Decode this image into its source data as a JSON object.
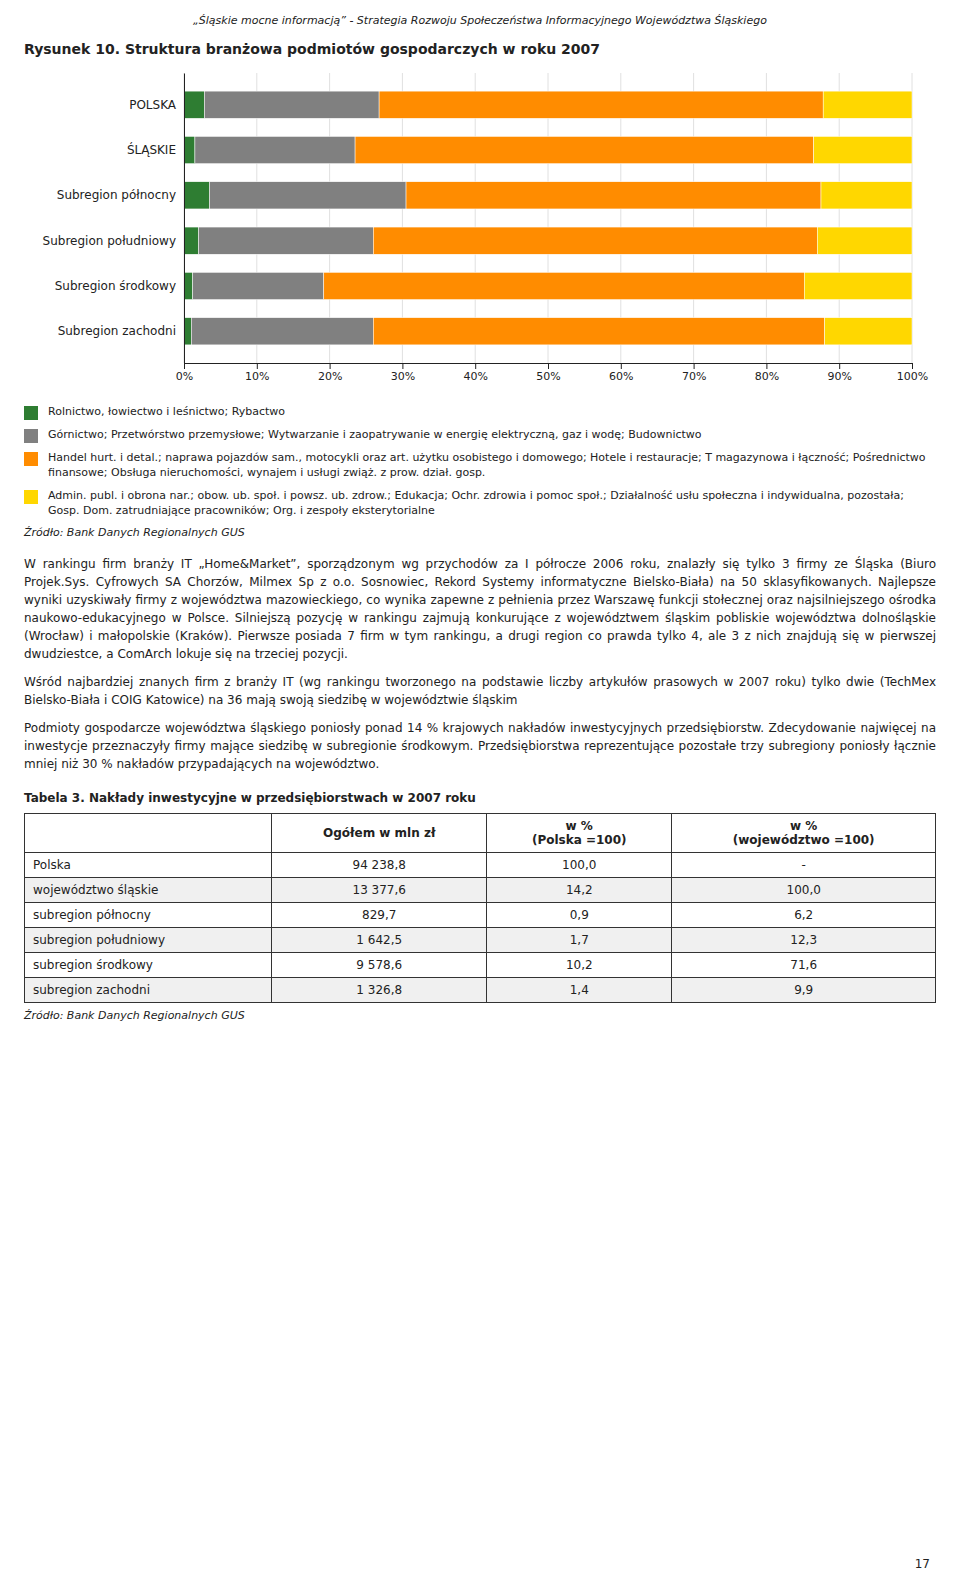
{
  "page_title": "„Śląskie mocne informacją” - Strategia Rozwoju Społeczeństwa Informacyjnego Województwa Śląskiego",
  "chart_data": {
    "type": "bar",
    "orientation": "horizontal",
    "stacked": true,
    "title": "Rysunek 10. Struktura branżowa podmiotów gospodarczych w roku 2007",
    "categories": [
      "POLSKA",
      "ŚLĄSKIE",
      "Subregion północny",
      "Subregion południowy",
      "Subregion środkowy",
      "Subregion zachodni"
    ],
    "series": [
      {
        "name": "Rolnictwo, łowiectwo i leśnictwo; Rybactwo",
        "color": "#2E7D32",
        "values": [
          2.8,
          1.5,
          3.5,
          2.0,
          1.2,
          1.0
        ]
      },
      {
        "name": "Górnictwo; Przetwórstwo przemysłowe; Wytwarzanie i zaopatrywanie w energię elektryczną, gaz i wodę; Budownictwo",
        "color": "#808080",
        "values": [
          24.0,
          22.0,
          27.0,
          24.0,
          18.0,
          25.0
        ]
      },
      {
        "name": "Handel hurt. i detal.; naprawa pojazdów sam., motocykli oraz art. użytku osobistego i domowego; Hotele i restauracje; T magazynowa i łączność; Pośrednictwo finansowe; Obsługa nieruchomości, wynajem i usługi zwiąż. z prow. dział. gosp.",
        "color": "#FF8C00",
        "values": [
          61.0,
          63.0,
          57.0,
          61.0,
          66.0,
          62.0
        ]
      },
      {
        "name": "Admin. publ. i obrona nar.; obow. ub. społ. i powsz. ub. zdrow.; Edukacja; Ochr. zdrowia i pomoc społ.; Działalność usłu społeczna i indywidualna, pozostała; Gosp. Dom. zatrudniające pracowników; Org. i zespoły eksterytorialne",
        "color": "#FFD700",
        "values": [
          12.2,
          13.5,
          12.5,
          13.0,
          14.8,
          12.0
        ]
      }
    ],
    "xlim": [
      0,
      100
    ],
    "xticks": [
      {
        "value": 0,
        "label": "0%"
      },
      {
        "value": 10,
        "label": "10%"
      },
      {
        "value": 20,
        "label": "20%"
      },
      {
        "value": 30,
        "label": "30%"
      },
      {
        "value": 40,
        "label": "40%"
      },
      {
        "value": 50,
        "label": "50%"
      },
      {
        "value": 60,
        "label": "60%"
      },
      {
        "value": 70,
        "label": "70%"
      },
      {
        "value": 80,
        "label": "80%"
      },
      {
        "value": 90,
        "label": "90%"
      },
      {
        "value": 100,
        "label": "100%"
      }
    ],
    "grid": true,
    "legend": "bottom",
    "annotations": [
      "Źródło: Bank Danych Regionalnych GUS"
    ]
  },
  "paragraphs": [
    "W rankingu firm branży IT „Home&Market”, sporządzonym wg przychodów za I półrocze 2006 roku, znalazły się tylko 3 firmy ze Śląska (Biuro Projek.Sys. Cyfrowych SA Chorzów, Milmex Sp z o.o. Sosnowiec, Rekord Systemy informatyczne Bielsko-Biała) na 50 sklasyfikowanych. Najlepsze wyniki uzyskiwały firmy z województwa mazowieckiego, co wynika zapewne z pełnienia przez Warszawę funkcji stołecznej oraz najsilniejszego ośrodka naukowo-edukacyjnego w Polsce. Silniejszą pozycję w rankingu zajmują konkurujące z województwem śląskim pobliskie województwa dolnośląskie (Wrocław) i małopolskie (Kraków). Pierwsze posiada 7 firm w tym rankingu, a drugi region co prawda tylko 4, ale 3 z nich znajdują się w pierwszej dwudziestce, a ComArch lokuje się na trzeciej pozycji.",
    "Wśród najbardziej znanych firm z branży IT (wg rankingu tworzonego na podstawie liczby artykułów prasowych w 2007 roku) tylko dwie (TechMex Bielsko-Biała i COIG Katowice) na 36 mają swoją siedzibę w województwie śląskim",
    "Podmioty gospodarcze województwa śląskiego poniosły ponad 14 % krajowych nakładów inwestycyjnych przedsiębiorstw. Zdecydowanie najwięcej na inwestycje przeznaczyły firmy mające siedzibę w subregionie środkowym. Przedsiębiorstwa reprezentujące pozostałe trzy subregiony poniosły łącznie mniej niż 30 % nakładów przypadających na województwo."
  ],
  "table": {
    "title": "Tabela 3. Nakłady inwestycyjne w przedsiębiorstwach w 2007 roku",
    "headers": [
      null,
      [
        "Ogółem w mln zł"
      ],
      [
        "w %",
        "(Polska =100)"
      ],
      [
        "w %",
        "(województwo =100)"
      ]
    ],
    "rows": [
      [
        "Polska",
        "94 238,8",
        "100,0",
        "-"
      ],
      [
        "województwo śląskie",
        "13 377,6",
        "14,2",
        "100,0"
      ],
      [
        "subregion północny",
        "829,7",
        "0,9",
        "6,2"
      ],
      [
        "subregion południowy",
        "1 642,5",
        "1,7",
        "12,3"
      ],
      [
        "subregion środkowy",
        "9 578,6",
        "10,2",
        "71,6"
      ],
      [
        "subregion zachodni",
        "1 326,8",
        "1,4",
        "9,9"
      ]
    ],
    "source": "Źródło: Bank Danych Regionalnych GUS"
  },
  "page_number": "17"
}
